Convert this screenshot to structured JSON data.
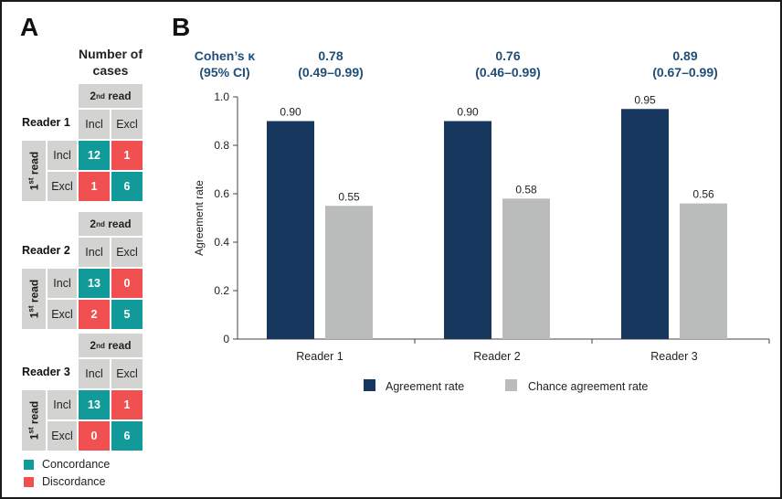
{
  "panels": {
    "a": "A",
    "b": "B"
  },
  "table": {
    "header": [
      "Number of",
      "cases"
    ],
    "second_read": "2",
    "second_read_sup": "nd",
    "second_read_rest": " read",
    "first_read": "1",
    "first_read_sup": "st",
    "first_read_rest": " read",
    "col_incl": "Incl",
    "col_excl": "Excl",
    "row_incl": "Incl",
    "row_excl": "Excl",
    "readers": [
      {
        "name": "Reader 1",
        "cells": {
          "incl_incl": "12",
          "incl_excl": "1",
          "excl_incl": "1",
          "excl_excl": "6"
        }
      },
      {
        "name": "Reader 2",
        "cells": {
          "incl_incl": "13",
          "incl_excl": "0",
          "excl_incl": "2",
          "excl_excl": "5"
        }
      },
      {
        "name": "Reader 3",
        "cells": {
          "incl_incl": "13",
          "incl_excl": "1",
          "excl_incl": "0",
          "excl_excl": "6"
        }
      }
    ],
    "legend": {
      "concordance": "Concordance",
      "discordance": "Discordance"
    }
  },
  "kappa": {
    "label1": "Cohen’s κ",
    "label2": "(95% CI)",
    "values": [
      {
        "k": "0.78",
        "ci": "(0.49–0.99)"
      },
      {
        "k": "0.76",
        "ci": "(0.46–0.99)"
      },
      {
        "k": "0.89",
        "ci": "(0.67–0.99)"
      }
    ]
  },
  "colors": {
    "concordance": "#12999a",
    "discordance": "#f05050",
    "agreement": "#17375e",
    "chance": "#b9bcbb",
    "grey_cell": "#d3d4d2",
    "kappa_text": "#1f4e79"
  },
  "chart_data": {
    "type": "bar",
    "title": "",
    "xlabel": "",
    "ylabel": "Agreement rate",
    "ylim": [
      0,
      1.0
    ],
    "yticks": [
      "0",
      "0.2",
      "0.4",
      "0.6",
      "0.8",
      "1.0"
    ],
    "categories": [
      "Reader 1",
      "Reader 2",
      "Reader 3"
    ],
    "series": [
      {
        "name": "Agreement rate",
        "values": [
          0.9,
          0.9,
          0.95
        ],
        "labels": [
          "0.90",
          "0.90",
          "0.95"
        ]
      },
      {
        "name": "Chance agreement rate",
        "values": [
          0.55,
          0.58,
          0.56
        ],
        "labels": [
          "0.55",
          "0.58",
          "0.56"
        ]
      }
    ],
    "legend": "bottom-center",
    "grid": false
  }
}
